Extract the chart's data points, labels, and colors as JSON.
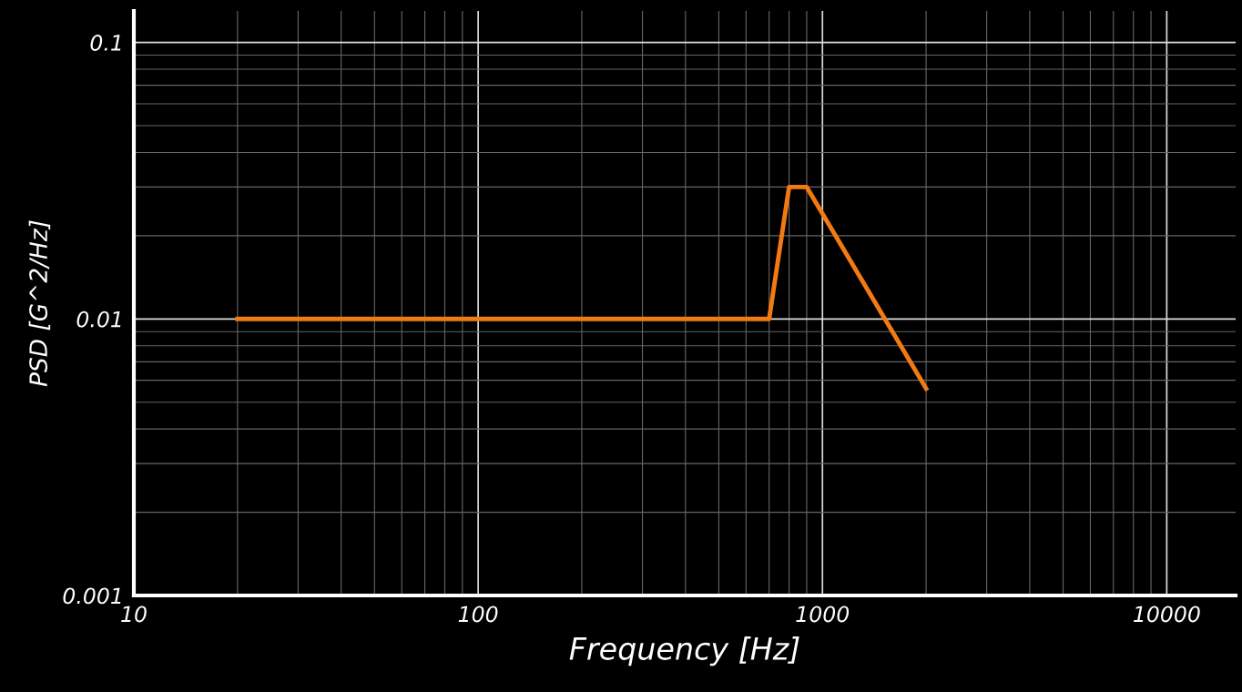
{
  "chart_data": {
    "type": "line",
    "xlabel": "Frequency [Hz]",
    "ylabel": "PSD [G^2/Hz]",
    "log": "xy",
    "grid": true,
    "xlim": [
      10,
      15850
    ],
    "ylim": [
      0.001,
      0.13
    ],
    "xticks": [
      10,
      100,
      1000,
      10000
    ],
    "yticks": [
      0.001,
      0.01,
      0.1
    ],
    "series": [
      {
        "color": "#f27a12",
        "x": [
          20,
          700,
          800,
          900,
          2000
        ],
        "values": [
          0.01,
          0.01,
          0.03,
          0.03,
          0.0056
        ]
      }
    ]
  }
}
